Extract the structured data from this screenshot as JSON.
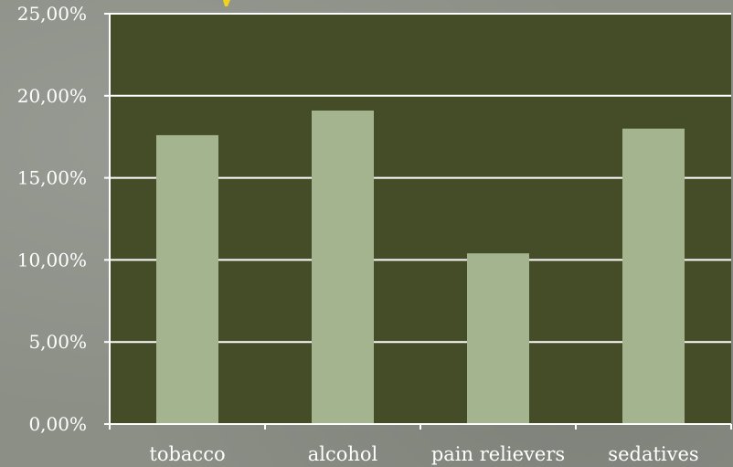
{
  "chart_data": {
    "type": "bar",
    "title": "",
    "xlabel": "",
    "ylabel": "",
    "categories": [
      "tobacco",
      "alcohol",
      "pain relievers",
      "sedatives"
    ],
    "values": [
      17.6,
      19.1,
      10.4,
      18.0
    ],
    "ylim": [
      0,
      25
    ],
    "yticks": [
      0,
      5,
      10,
      15,
      20,
      25
    ],
    "ytick_labels": [
      "0,00%",
      "5,00%",
      "10,00%",
      "15,00%",
      "20,00%",
      "25,00%"
    ],
    "grid": true,
    "legend": "none",
    "colors": {
      "plot_background": "#444d27",
      "bar": "#a4b48f",
      "gridline": "#ffffff",
      "axis": "#ffffff",
      "text": "#ffffff",
      "page_background": "#8b8f86",
      "accent_mark": "#f2d21a"
    }
  }
}
